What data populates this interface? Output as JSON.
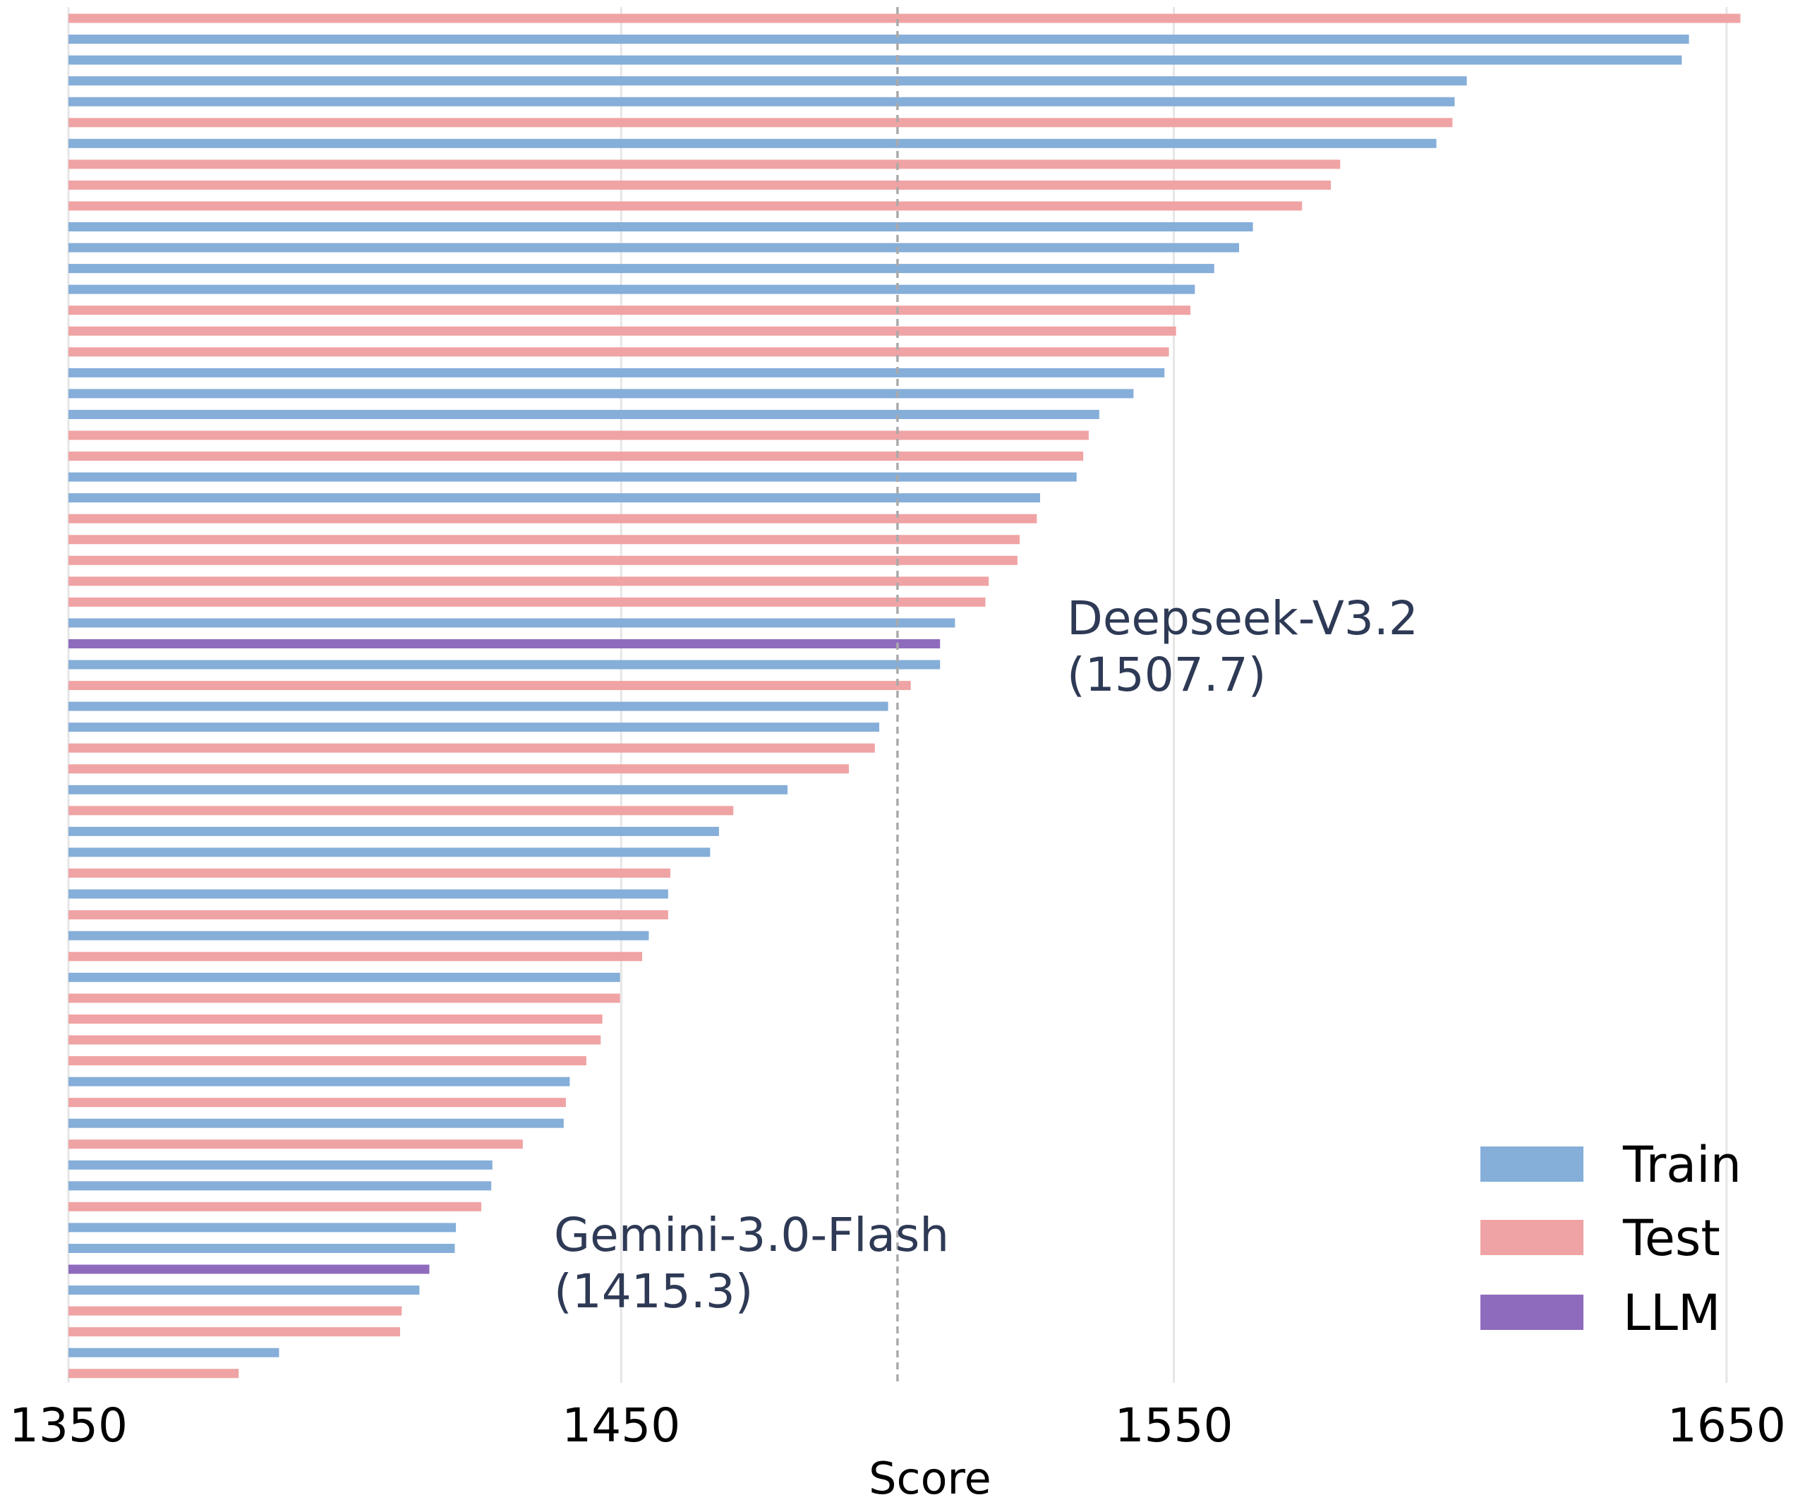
{
  "chart_data": {
    "type": "bar",
    "orientation": "horizontal",
    "xlabel": "Score",
    "xlim": [
      1350,
      1655
    ],
    "xticks": [
      "1350",
      "1450",
      "1550",
      "1650"
    ],
    "grid": "vertical",
    "reference_line": {
      "value": 1500,
      "style": "dashed"
    },
    "legend": {
      "placement": "bottom-right",
      "entries": [
        {
          "label": "Train",
          "color": "#85aed9"
        },
        {
          "label": "Test",
          "color": "#f0a3a4"
        },
        {
          "label": "LLM",
          "color": "#8f6bbd"
        }
      ]
    },
    "annotations": [
      {
        "line1": "Deepseek-V3.2",
        "line2": "(1507.7)",
        "value": 1507.7
      },
      {
        "line1": "Gemini-3.0-Flash",
        "line2": "(1415.3)",
        "value": 1415.3
      }
    ],
    "bars": [
      {
        "group": "Test",
        "value": 1652.5
      },
      {
        "group": "Train",
        "value": 1643.2
      },
      {
        "group": "Train",
        "value": 1641.9
      },
      {
        "group": "Train",
        "value": 1603.0
      },
      {
        "group": "Train",
        "value": 1600.8
      },
      {
        "group": "Test",
        "value": 1600.4
      },
      {
        "group": "Train",
        "value": 1597.5
      },
      {
        "group": "Test",
        "value": 1580.1
      },
      {
        "group": "Test",
        "value": 1578.4
      },
      {
        "group": "Test",
        "value": 1573.2
      },
      {
        "group": "Train",
        "value": 1564.3
      },
      {
        "group": "Train",
        "value": 1561.8
      },
      {
        "group": "Train",
        "value": 1557.3
      },
      {
        "group": "Train",
        "value": 1553.8
      },
      {
        "group": "Test",
        "value": 1553.0
      },
      {
        "group": "Test",
        "value": 1550.4
      },
      {
        "group": "Test",
        "value": 1549.1
      },
      {
        "group": "Train",
        "value": 1548.3
      },
      {
        "group": "Train",
        "value": 1542.7
      },
      {
        "group": "Train",
        "value": 1536.5
      },
      {
        "group": "Test",
        "value": 1534.6
      },
      {
        "group": "Test",
        "value": 1533.6
      },
      {
        "group": "Train",
        "value": 1532.4
      },
      {
        "group": "Train",
        "value": 1525.8
      },
      {
        "group": "Test",
        "value": 1525.2
      },
      {
        "group": "Test",
        "value": 1522.1
      },
      {
        "group": "Test",
        "value": 1521.7
      },
      {
        "group": "Test",
        "value": 1516.5
      },
      {
        "group": "Test",
        "value": 1515.9
      },
      {
        "group": "Train",
        "value": 1510.4
      },
      {
        "group": "LLM",
        "value": 1507.7
      },
      {
        "group": "Train",
        "value": 1507.7
      },
      {
        "group": "Test",
        "value": 1502.4
      },
      {
        "group": "Train",
        "value": 1498.3
      },
      {
        "group": "Train",
        "value": 1496.7
      },
      {
        "group": "Test",
        "value": 1495.9
      },
      {
        "group": "Test",
        "value": 1491.2
      },
      {
        "group": "Train",
        "value": 1480.1
      },
      {
        "group": "Test",
        "value": 1470.3
      },
      {
        "group": "Train",
        "value": 1467.7
      },
      {
        "group": "Train",
        "value": 1466.1
      },
      {
        "group": "Test",
        "value": 1458.9
      },
      {
        "group": "Train",
        "value": 1458.5
      },
      {
        "group": "Test",
        "value": 1458.5
      },
      {
        "group": "Train",
        "value": 1455.0
      },
      {
        "group": "Test",
        "value": 1453.8
      },
      {
        "group": "Train",
        "value": 1449.8
      },
      {
        "group": "Test",
        "value": 1449.8
      },
      {
        "group": "Test",
        "value": 1446.6
      },
      {
        "group": "Test",
        "value": 1446.3
      },
      {
        "group": "Test",
        "value": 1443.7
      },
      {
        "group": "Train",
        "value": 1440.7
      },
      {
        "group": "Test",
        "value": 1440.0
      },
      {
        "group": "Train",
        "value": 1439.6
      },
      {
        "group": "Test",
        "value": 1432.2
      },
      {
        "group": "Train",
        "value": 1426.7
      },
      {
        "group": "Train",
        "value": 1426.5
      },
      {
        "group": "Test",
        "value": 1424.7
      },
      {
        "group": "Train",
        "value": 1420.1
      },
      {
        "group": "Train",
        "value": 1419.9
      },
      {
        "group": "LLM",
        "value": 1415.3
      },
      {
        "group": "Train",
        "value": 1413.5
      },
      {
        "group": "Test",
        "value": 1410.3
      },
      {
        "group": "Test",
        "value": 1410.0
      },
      {
        "group": "Train",
        "value": 1388.1
      },
      {
        "group": "Test",
        "value": 1380.8
      }
    ]
  }
}
